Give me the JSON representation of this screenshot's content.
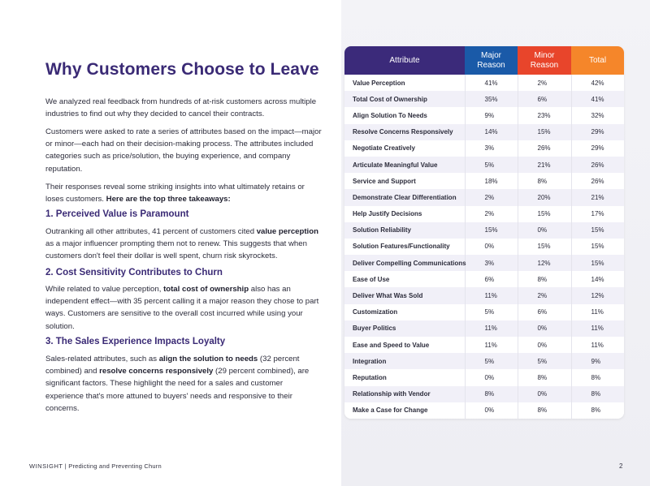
{
  "heading": "Why Customers Choose to Leave",
  "intro": {
    "p1": "We analyzed real feedback from hundreds of at-risk customers across multiple industries to find out why they decided to cancel their contracts.",
    "p2": "Customers were asked to rate a series of attributes based on the impact—major or minor—each had on their decision-making process. The attributes included categories such as price/solution, the buying experience, and company reputation.",
    "p3_text": "Their responses reveal some striking insights into what ultimately retains or loses customers. ",
    "p3_bold": "Here are the top three takeaways:"
  },
  "sections": [
    {
      "title": "1. Perceived Value is Paramount",
      "t1": "Outranking all other attributes, 41 percent of customers cited ",
      "b1": "value perception",
      "t2": " as a major influencer prompting them not to renew. This suggests that when customers don't feel their dollar is well spent, churn risk skyrockets."
    },
    {
      "title": "2. Cost Sensitivity Contributes to Churn",
      "t1": "While related to value perception, ",
      "b1": "total cost of ownership",
      "t2": " also has an independent effect—with 35 percent calling it a major reason they chose to part ways. Customers are sensitive to the overall cost incurred while using your solution."
    },
    {
      "title": "3. The Sales Experience Impacts Loyalty",
      "t1": "Sales-related attributes, such as ",
      "b1": "align the solution to needs",
      "t2": " (32 percent combined) and ",
      "b2": "resolve concerns responsively",
      "t3": " (29 percent combined), are significant factors. These highlight the need for a sales and customer experience that's more attuned to buyers' needs and responsive to their concerns."
    }
  ],
  "table": {
    "headers": {
      "attribute": "Attribute",
      "major_l1": "Major",
      "major_l2": "Reason",
      "minor_l1": "Minor",
      "minor_l2": "Reason",
      "total": "Total"
    },
    "rows": [
      {
        "name": "Value Perception",
        "major": "41%",
        "minor": "2%",
        "total": "42%"
      },
      {
        "name": "Total Cost of Ownership",
        "major": "35%",
        "minor": "6%",
        "total": "41%"
      },
      {
        "name": "Align Solution To Needs",
        "major": "9%",
        "minor": "23%",
        "total": "32%"
      },
      {
        "name": "Resolve Concerns Responsively",
        "major": "14%",
        "minor": "15%",
        "total": "29%"
      },
      {
        "name": "Negotiate Creatively",
        "major": "3%",
        "minor": "26%",
        "total": "29%"
      },
      {
        "name": "Articulate Meaningful Value",
        "major": "5%",
        "minor": "21%",
        "total": "26%"
      },
      {
        "name": "Service and Support",
        "major": "18%",
        "minor": "8%",
        "total": "26%"
      },
      {
        "name": "Demonstrate Clear Differentiation",
        "major": "2%",
        "minor": "20%",
        "total": "21%"
      },
      {
        "name": "Help Justify Decisions",
        "major": "2%",
        "minor": "15%",
        "total": "17%"
      },
      {
        "name": "Solution Reliability",
        "major": "15%",
        "minor": "0%",
        "total": "15%"
      },
      {
        "name": "Solution Features/Functionality",
        "major": "0%",
        "minor": "15%",
        "total": "15%"
      },
      {
        "name": "Deliver Compelling Communications",
        "major": "3%",
        "minor": "12%",
        "total": "15%"
      },
      {
        "name": "Ease of Use",
        "major": "6%",
        "minor": "8%",
        "total": "14%"
      },
      {
        "name": "Deliver What Was Sold",
        "major": "11%",
        "minor": "2%",
        "total": "12%"
      },
      {
        "name": "Customization",
        "major": "5%",
        "minor": "6%",
        "total": "11%"
      },
      {
        "name": "Buyer Politics",
        "major": "11%",
        "minor": "0%",
        "total": "11%"
      },
      {
        "name": "Ease and Speed to Value",
        "major": "11%",
        "minor": "0%",
        "total": "11%"
      },
      {
        "name": "Integration",
        "major": "5%",
        "minor": "5%",
        "total": "9%"
      },
      {
        "name": "Reputation",
        "major": "0%",
        "minor": "8%",
        "total": "8%"
      },
      {
        "name": "Relationship with Vendor",
        "major": "8%",
        "minor": "0%",
        "total": "8%"
      },
      {
        "name": "Make a Case for Change",
        "major": "0%",
        "minor": "8%",
        "total": "8%"
      }
    ]
  },
  "footer": {
    "brand": "WINSIGHT",
    "separator": "|",
    "title": "Predicting and Preventing Churn",
    "page": "2"
  },
  "colors": {
    "heading": "#3a2a75",
    "attr_header": "#3b2a7a",
    "major_header": "#1a5aa8",
    "minor_header": "#e8452b",
    "total_header": "#f5862a"
  }
}
